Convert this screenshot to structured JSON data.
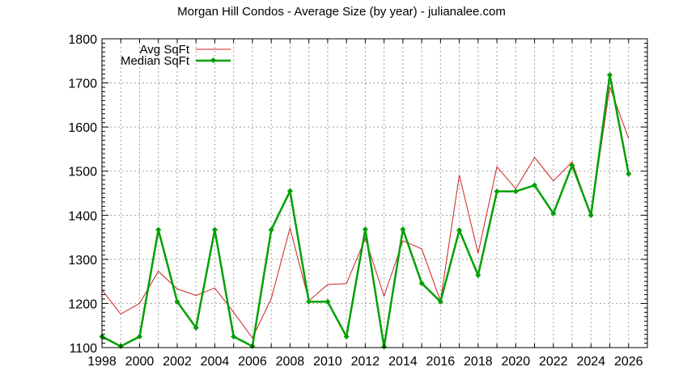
{
  "chart_data": {
    "type": "line",
    "title": "Morgan Hill Condos - Average Size (by year) - julianalee.com",
    "xlabel": "",
    "ylabel": "",
    "xlim": [
      1998,
      2027
    ],
    "ylim": [
      1100,
      1800
    ],
    "grid": true,
    "legend_position": "top-left",
    "x_ticks": [
      1998,
      2000,
      2002,
      2004,
      2006,
      2008,
      2010,
      2012,
      2014,
      2016,
      2018,
      2020,
      2022,
      2024,
      2026
    ],
    "y_ticks": [
      1100,
      1200,
      1300,
      1400,
      1500,
      1600,
      1700,
      1800
    ],
    "x": [
      1998,
      1999,
      2000,
      2001,
      2002,
      2003,
      2004,
      2005,
      2006,
      2007,
      2008,
      2009,
      2010,
      2011,
      2012,
      2013,
      2014,
      2015,
      2016,
      2017,
      2018,
      2019,
      2020,
      2021,
      2022,
      2023,
      2024,
      2025,
      2026
    ],
    "series": [
      {
        "name": "Avg SqFt",
        "color": "#cc2222",
        "marker": "none",
        "values": [
          1231,
          1176,
          1200,
          1273,
          1233,
          1218,
          1235,
          1180,
          1122,
          1211,
          1371,
          1206,
          1243,
          1245,
          1347,
          1217,
          1342,
          1324,
          1206,
          1491,
          1314,
          1510,
          1460,
          1531,
          1478,
          1521,
          1400,
          1691,
          1574
        ]
      },
      {
        "name": "Median SqFt",
        "color": "#00a000",
        "marker": "diamond",
        "values": [
          1125,
          1103,
          1125,
          1367,
          1204,
          1145,
          1367,
          1125,
          1103,
          1367,
          1455,
          1204,
          1204,
          1125,
          1368,
          1102,
          1368,
          1246,
          1204,
          1366,
          1264,
          1454,
          1454,
          1468,
          1404,
          1513,
          1400,
          1718,
          1494
        ]
      }
    ]
  }
}
